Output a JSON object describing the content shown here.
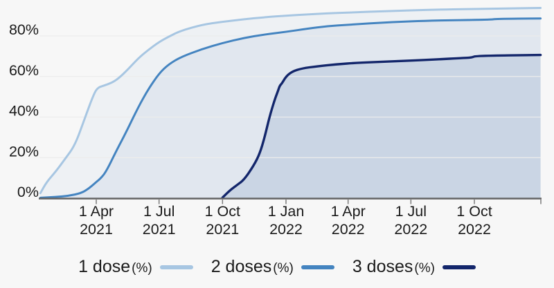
{
  "page": {
    "background": "#f7f7f7"
  },
  "colors": {
    "axis_line": "#636363",
    "tick_mark": "#7a7a7a",
    "gridline": "#ececec",
    "text": "#1a1a1a",
    "series_1_dose": "#a7c6e2",
    "series_2_doses": "#4484c0",
    "series_3_doses": "#13266b"
  },
  "chart_data": {
    "type": "area",
    "title": "",
    "xlabel": "",
    "ylabel": "",
    "grid": true,
    "legend_position": "bottom",
    "ylim": [
      0,
      95
    ],
    "x_range": [
      "2021-01-10",
      "2023-01-05"
    ],
    "y_ticks": [
      {
        "value": 0,
        "label": "0%"
      },
      {
        "value": 20,
        "label": "20%"
      },
      {
        "value": 40,
        "label": "40%"
      },
      {
        "value": 60,
        "label": "60%"
      },
      {
        "value": 80,
        "label": "80%"
      }
    ],
    "x_ticks": [
      {
        "date": "2021-04-01",
        "line1": "1 Apr",
        "line2": "2021"
      },
      {
        "date": "2021-07-01",
        "line1": "1 Jul",
        "line2": "2021"
      },
      {
        "date": "2021-10-01",
        "line1": "1 Oct",
        "line2": "2021"
      },
      {
        "date": "2022-01-01",
        "line1": "1 Jan",
        "line2": "2022"
      },
      {
        "date": "2022-04-01",
        "line1": "1 Apr",
        "line2": "2022"
      },
      {
        "date": "2022-07-01",
        "line1": "1 Jul",
        "line2": "2022"
      },
      {
        "date": "2022-10-01",
        "line1": "1 Oct",
        "line2": "2022"
      }
    ],
    "series": [
      {
        "name": "1 dose (%)",
        "legend_label": "1 dose",
        "legend_unit": "(%)",
        "color": "#a7c6e2",
        "fill": "rgba(168,199,230,0.10)",
        "points": [
          [
            "2021-01-10",
            2.5
          ],
          [
            "2021-01-19",
            8
          ],
          [
            "2021-02-01",
            13
          ],
          [
            "2021-02-15",
            19.5
          ],
          [
            "2021-03-01",
            26
          ],
          [
            "2021-03-15",
            39
          ],
          [
            "2021-03-28",
            51
          ],
          [
            "2021-04-03",
            54.5
          ],
          [
            "2021-04-12",
            55.5
          ],
          [
            "2021-04-24",
            57
          ],
          [
            "2021-05-03",
            59
          ],
          [
            "2021-05-17",
            63.5
          ],
          [
            "2021-06-01",
            69
          ],
          [
            "2021-06-15",
            73
          ],
          [
            "2021-07-01",
            77
          ],
          [
            "2021-07-16",
            79.8
          ],
          [
            "2021-08-01",
            82.5
          ],
          [
            "2021-09-01",
            85.5
          ],
          [
            "2021-10-01",
            87
          ],
          [
            "2021-11-01",
            88.2
          ],
          [
            "2021-12-01",
            89.2
          ],
          [
            "2022-01-01",
            90
          ],
          [
            "2022-02-01",
            90.6
          ],
          [
            "2022-03-01",
            91.1
          ],
          [
            "2022-04-01",
            91.5
          ],
          [
            "2022-06-01",
            92.3
          ],
          [
            "2022-08-01",
            92.9
          ],
          [
            "2022-10-01",
            93.3
          ],
          [
            "2023-01-05",
            93.8
          ]
        ]
      },
      {
        "name": "2 doses (%)",
        "legend_label": "2 doses",
        "legend_unit": "(%)",
        "color": "#4484c0",
        "fill": "rgba(130,165,205,0.12)",
        "points": [
          [
            "2021-01-10",
            0.2
          ],
          [
            "2021-02-01",
            0.6
          ],
          [
            "2021-02-20",
            1.2
          ],
          [
            "2021-03-10",
            2.5
          ],
          [
            "2021-03-20",
            4.5
          ],
          [
            "2021-03-27",
            6.5
          ],
          [
            "2021-04-01",
            8
          ],
          [
            "2021-04-08",
            10
          ],
          [
            "2021-04-16",
            13.5
          ],
          [
            "2021-05-01",
            24
          ],
          [
            "2021-05-15",
            33
          ],
          [
            "2021-06-01",
            45
          ],
          [
            "2021-06-15",
            53.5
          ],
          [
            "2021-07-01",
            61.5
          ],
          [
            "2021-07-15",
            66
          ],
          [
            "2021-08-01",
            69.5
          ],
          [
            "2021-09-01",
            73.5
          ],
          [
            "2021-10-01",
            76.5
          ],
          [
            "2021-11-01",
            79
          ],
          [
            "2021-12-01",
            80.7
          ],
          [
            "2022-01-01",
            82
          ],
          [
            "2022-02-01",
            83.6
          ],
          [
            "2022-03-01",
            84.8
          ],
          [
            "2022-04-01",
            85.5
          ],
          [
            "2022-06-01",
            86.8
          ],
          [
            "2022-08-01",
            87.6
          ],
          [
            "2022-10-25",
            88
          ],
          [
            "2022-11-01",
            88.4
          ],
          [
            "2023-01-05",
            88.6
          ]
        ]
      },
      {
        "name": "3 doses (%)",
        "legend_label": "3 doses",
        "legend_unit": "(%)",
        "color": "#13266b",
        "fill": "rgba(90,120,175,0.16)",
        "points": [
          [
            "2021-10-01",
            0.3
          ],
          [
            "2021-10-12",
            4
          ],
          [
            "2021-10-22",
            6.5
          ],
          [
            "2021-11-01",
            9
          ],
          [
            "2021-11-15",
            16
          ],
          [
            "2021-11-24",
            22
          ],
          [
            "2021-12-01",
            30
          ],
          [
            "2021-12-08",
            40
          ],
          [
            "2021-12-15",
            48
          ],
          [
            "2021-12-20",
            52.5
          ],
          [
            "2021-12-23",
            55.5
          ],
          [
            "2021-12-26",
            56.5
          ],
          [
            "2022-01-01",
            60
          ],
          [
            "2022-01-10",
            62.5
          ],
          [
            "2022-01-24",
            64
          ],
          [
            "2022-02-15",
            65
          ],
          [
            "2022-03-15",
            66
          ],
          [
            "2022-04-15",
            66.8
          ],
          [
            "2022-06-01",
            67.4
          ],
          [
            "2022-08-01",
            68.3
          ],
          [
            "2022-09-20",
            69.2
          ],
          [
            "2022-09-28",
            69.4
          ],
          [
            "2022-10-03",
            70.2
          ],
          [
            "2023-01-05",
            70.6
          ]
        ]
      }
    ]
  }
}
